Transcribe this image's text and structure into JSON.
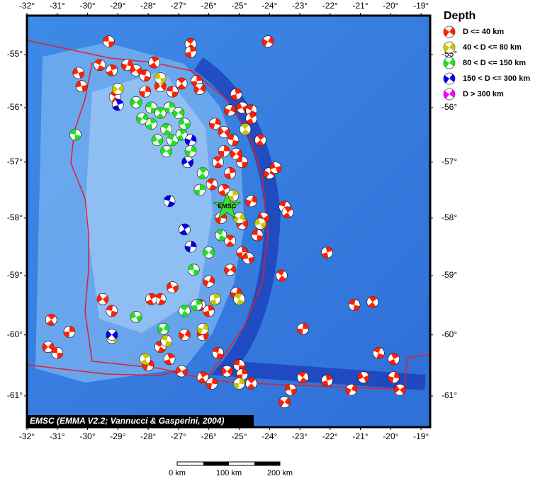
{
  "map": {
    "lon_range": [
      -32,
      -18.7
    ],
    "lat_range": [
      -54.25,
      -61.5
    ],
    "lon_ticks": [
      {
        "value": -32,
        "label": "-32°"
      },
      {
        "value": -31,
        "label": "-31°"
      },
      {
        "value": -30,
        "label": "-30°"
      },
      {
        "value": -29,
        "label": "-29°"
      },
      {
        "value": -28,
        "label": "-28°"
      },
      {
        "value": -27,
        "label": "-27°"
      },
      {
        "value": -26,
        "label": "-26°"
      },
      {
        "value": -25,
        "label": "-25°"
      },
      {
        "value": -24,
        "label": "-24°"
      },
      {
        "value": -23,
        "label": "-23°"
      },
      {
        "value": -22,
        "label": "-22°"
      },
      {
        "value": -21,
        "label": "-21°"
      },
      {
        "value": -20,
        "label": "-20°"
      },
      {
        "value": -19,
        "label": "-19°"
      }
    ],
    "lat_ticks": [
      {
        "value": -55,
        "label": "-55°"
      },
      {
        "value": -56,
        "label": "-56°"
      },
      {
        "value": -57,
        "label": "-57°"
      },
      {
        "value": -58,
        "label": "-58°"
      },
      {
        "value": -59,
        "label": "-59°"
      },
      {
        "value": -60,
        "label": "-60°"
      },
      {
        "value": -61,
        "label": "-61°"
      }
    ],
    "star": {
      "label": "EMSC",
      "lon": -25.4,
      "lat": -57.8
    },
    "events": [
      [
        -29.3,
        -54.75,
        0
      ],
      [
        -26.6,
        -54.8,
        0
      ],
      [
        -26.6,
        -54.95,
        0
      ],
      [
        -24.05,
        -54.75,
        0
      ],
      [
        -30.3,
        -55.35,
        0
      ],
      [
        -29.6,
        -55.2,
        0
      ],
      [
        -29.2,
        -55.3,
        0
      ],
      [
        -28.7,
        -55.2,
        0
      ],
      [
        -28.4,
        -55.3,
        0
      ],
      [
        -28.1,
        -55.4,
        0
      ],
      [
        -27.8,
        -55.15,
        0
      ],
      [
        -28.1,
        -55.7,
        0
      ],
      [
        -27.6,
        -55.6,
        0
      ],
      [
        -27.2,
        -55.7,
        0
      ],
      [
        -26.9,
        -55.55,
        0
      ],
      [
        -26.4,
        -55.5,
        0
      ],
      [
        -26.3,
        -55.65,
        0
      ],
      [
        -30.2,
        -55.6,
        0
      ],
      [
        -29.1,
        -55.8,
        0
      ],
      [
        -25.1,
        -55.75,
        0
      ],
      [
        -25.3,
        -56.05,
        0
      ],
      [
        -24.9,
        -56.0,
        0
      ],
      [
        -24.6,
        -56.05,
        0
      ],
      [
        -24.6,
        -56.2,
        0
      ],
      [
        -25.8,
        -56.3,
        0
      ],
      [
        -25.5,
        -56.45,
        0
      ],
      [
        -25.2,
        -56.6,
        0
      ],
      [
        -24.3,
        -56.6,
        0
      ],
      [
        -25.5,
        -56.8,
        0
      ],
      [
        -25.1,
        -56.85,
        0
      ],
      [
        -24.9,
        -57.0,
        0
      ],
      [
        -25.7,
        -57.0,
        0
      ],
      [
        -25.3,
        -57.2,
        0
      ],
      [
        -24.0,
        -57.2,
        0
      ],
      [
        -23.8,
        -57.1,
        0
      ],
      [
        -25.9,
        -57.4,
        0
      ],
      [
        -25.5,
        -57.5,
        0
      ],
      [
        -24.6,
        -57.7,
        0
      ],
      [
        -24.2,
        -58.0,
        0
      ],
      [
        -23.5,
        -57.8,
        0
      ],
      [
        -23.4,
        -57.9,
        0
      ],
      [
        -25.6,
        -58.0,
        0
      ],
      [
        -24.9,
        -58.1,
        0
      ],
      [
        -24.4,
        -58.3,
        0
      ],
      [
        -25.3,
        -58.4,
        0
      ],
      [
        -24.9,
        -58.6,
        0
      ],
      [
        -25.3,
        -58.9,
        0
      ],
      [
        -24.7,
        -58.7,
        0
      ],
      [
        -23.6,
        -59.0,
        0
      ],
      [
        -22.1,
        -58.6,
        0
      ],
      [
        -26.0,
        -59.1,
        0
      ],
      [
        -27.2,
        -59.2,
        0
      ],
      [
        -27.6,
        -59.4,
        0
      ],
      [
        -27.9,
        -59.4,
        0
      ],
      [
        -25.1,
        -59.3,
        0
      ],
      [
        -29.5,
        -59.4,
        0
      ],
      [
        -29.2,
        -59.6,
        0
      ],
      [
        -31.2,
        -59.75,
        0
      ],
      [
        -30.6,
        -59.95,
        0
      ],
      [
        -31.3,
        -60.2,
        0
      ],
      [
        -31.0,
        -60.3,
        0
      ],
      [
        -26.3,
        -59.5,
        0
      ],
      [
        -26.0,
        -59.6,
        0
      ],
      [
        -26.8,
        -60.0,
        0
      ],
      [
        -26.2,
        -60.0,
        0
      ],
      [
        -27.6,
        -60.2,
        0
      ],
      [
        -27.3,
        -60.4,
        0
      ],
      [
        -28.0,
        -60.5,
        0
      ],
      [
        -26.9,
        -60.6,
        0
      ],
      [
        -25.7,
        -60.3,
        0
      ],
      [
        -26.2,
        -60.7,
        0
      ],
      [
        -25.9,
        -60.8,
        0
      ],
      [
        -25.4,
        -60.6,
        0
      ],
      [
        -25.0,
        -60.5,
        0
      ],
      [
        -24.6,
        -60.8,
        0
      ],
      [
        -24.9,
        -60.65,
        0
      ],
      [
        -23.5,
        -61.1,
        0
      ],
      [
        -23.3,
        -60.9,
        0
      ],
      [
        -22.9,
        -60.7,
        0
      ],
      [
        -22.1,
        -60.75,
        0
      ],
      [
        -21.3,
        -60.9,
        0
      ],
      [
        -20.9,
        -60.7,
        0
      ],
      [
        -20.4,
        -60.3,
        0
      ],
      [
        -19.9,
        -60.4,
        0
      ],
      [
        -19.9,
        -60.7,
        0
      ],
      [
        -19.7,
        -60.9,
        0
      ],
      [
        -21.2,
        -59.5,
        0
      ],
      [
        -20.6,
        -59.45,
        0
      ],
      [
        -22.9,
        -59.9,
        0
      ],
      [
        -29.0,
        -55.65,
        1
      ],
      [
        -27.6,
        -55.45,
        1
      ],
      [
        -24.8,
        -56.4,
        1
      ],
      [
        -25.2,
        -57.6,
        1
      ],
      [
        -25.0,
        -58.0,
        1
      ],
      [
        -24.3,
        -58.1,
        1
      ],
      [
        -25.0,
        -59.4,
        1
      ],
      [
        -25.8,
        -59.4,
        1
      ],
      [
        -26.2,
        -59.9,
        1
      ],
      [
        -29.2,
        -60.05,
        1
      ],
      [
        -27.4,
        -60.1,
        1
      ],
      [
        -28.1,
        -60.4,
        1
      ],
      [
        -25.0,
        -60.8,
        1
      ],
      [
        -28.4,
        -55.9,
        2
      ],
      [
        -27.9,
        -56.0,
        2
      ],
      [
        -27.6,
        -56.1,
        2
      ],
      [
        -27.3,
        -56.0,
        2
      ],
      [
        -27.0,
        -56.1,
        2
      ],
      [
        -26.8,
        -56.3,
        2
      ],
      [
        -27.4,
        -56.4,
        2
      ],
      [
        -27.9,
        -56.3,
        2
      ],
      [
        -28.2,
        -56.2,
        2
      ],
      [
        -27.7,
        -56.6,
        2
      ],
      [
        -27.2,
        -56.6,
        2
      ],
      [
        -26.9,
        -56.5,
        2
      ],
      [
        -26.6,
        -56.8,
        2
      ],
      [
        -27.4,
        -56.8,
        2
      ],
      [
        -30.4,
        -56.5,
        2
      ],
      [
        -26.2,
        -57.2,
        2
      ],
      [
        -26.3,
        -57.5,
        2
      ],
      [
        -26.0,
        -58.6,
        2
      ],
      [
        -26.5,
        -58.9,
        2
      ],
      [
        -26.8,
        -59.6,
        2
      ],
      [
        -26.4,
        -59.5,
        2
      ],
      [
        -27.5,
        -59.9,
        2
      ],
      [
        -28.4,
        -59.7,
        2
      ],
      [
        -25.6,
        -58.3,
        2
      ],
      [
        -29.0,
        -55.95,
        3
      ],
      [
        -26.6,
        -56.6,
        3
      ],
      [
        -26.7,
        -57.0,
        3
      ],
      [
        -27.3,
        -57.7,
        3
      ],
      [
        -26.8,
        -58.2,
        3
      ],
      [
        -26.6,
        -58.5,
        3
      ],
      [
        -29.2,
        -60.0,
        3
      ]
    ]
  },
  "legend": {
    "title": "Depth",
    "items": [
      {
        "label": "D <= 40 km",
        "color": "#ff2000"
      },
      {
        "label": "40 < D <= 80 km",
        "color": "#c8c800"
      },
      {
        "label": "80 < D <= 150 km",
        "color": "#20e020"
      },
      {
        "label": "150 < D <= 300 km",
        "color": "#0000e0"
      },
      {
        "label": "D > 300 km",
        "color": "#ff00ff"
      }
    ]
  },
  "credit": "EMSC (EMMA V2.2; Vannucci & Gasperini, 2004)",
  "scale_bar": {
    "labels": [
      "0 km",
      "100 km",
      "200 km"
    ]
  }
}
